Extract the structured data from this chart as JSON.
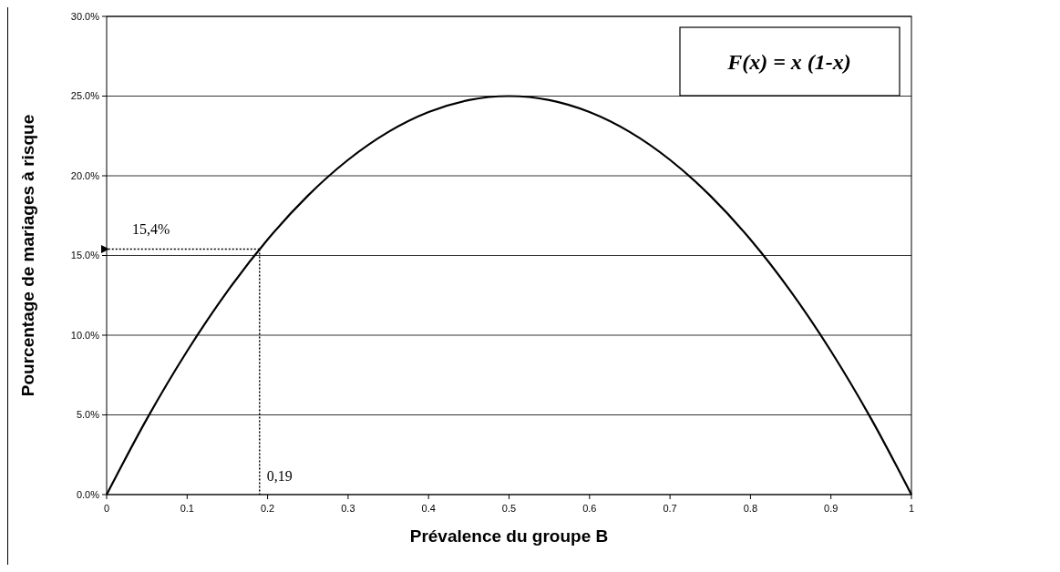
{
  "chart_data": {
    "type": "line",
    "xlabel": "Prévalence du groupe B",
    "ylabel": "Pourcentage de mariages à risque",
    "x": [
      0,
      0.05,
      0.1,
      0.15,
      0.2,
      0.25,
      0.3,
      0.35,
      0.4,
      0.45,
      0.5,
      0.55,
      0.6,
      0.65,
      0.7,
      0.75,
      0.8,
      0.85,
      0.9,
      0.95,
      1
    ],
    "series": [
      {
        "color": "#000000",
        "values": [
          0,
          4.75,
          9,
          12.75,
          16,
          18.75,
          21,
          22.75,
          24,
          24.75,
          25,
          24.75,
          24,
          22.75,
          21,
          18.75,
          16,
          12.75,
          9,
          4.75,
          0
        ]
      }
    ],
    "xlim": [
      0,
      1
    ],
    "xticks": [
      0,
      0.1,
      0.2,
      0.3,
      0.4,
      0.5,
      0.6,
      0.7,
      0.8,
      0.9,
      1
    ],
    "ylim": [
      0,
      30
    ],
    "yticks": [
      {
        "value": 0,
        "label": "0.0%"
      },
      {
        "value": 5,
        "label": "5.0%"
      },
      {
        "value": 10,
        "label": "10.0%"
      },
      {
        "value": 15,
        "label": "15.0%"
      },
      {
        "value": 20,
        "label": "20.0%"
      },
      {
        "value": 25,
        "label": "25.0%"
      },
      {
        "value": 30,
        "label": "30.0%"
      }
    ],
    "grid": "y",
    "marker": "none",
    "line_style": "solid",
    "ref_lines": [
      {
        "axis": "y",
        "value": 15.4,
        "label": "15,4%",
        "color": "#000000",
        "line_style": "dotted"
      },
      {
        "axis": "x",
        "value": 0.19,
        "label": "0,19",
        "color": "#000000",
        "line_style": "dotted"
      }
    ],
    "annotations": [
      "F(x) = x (1-x)"
    ]
  }
}
